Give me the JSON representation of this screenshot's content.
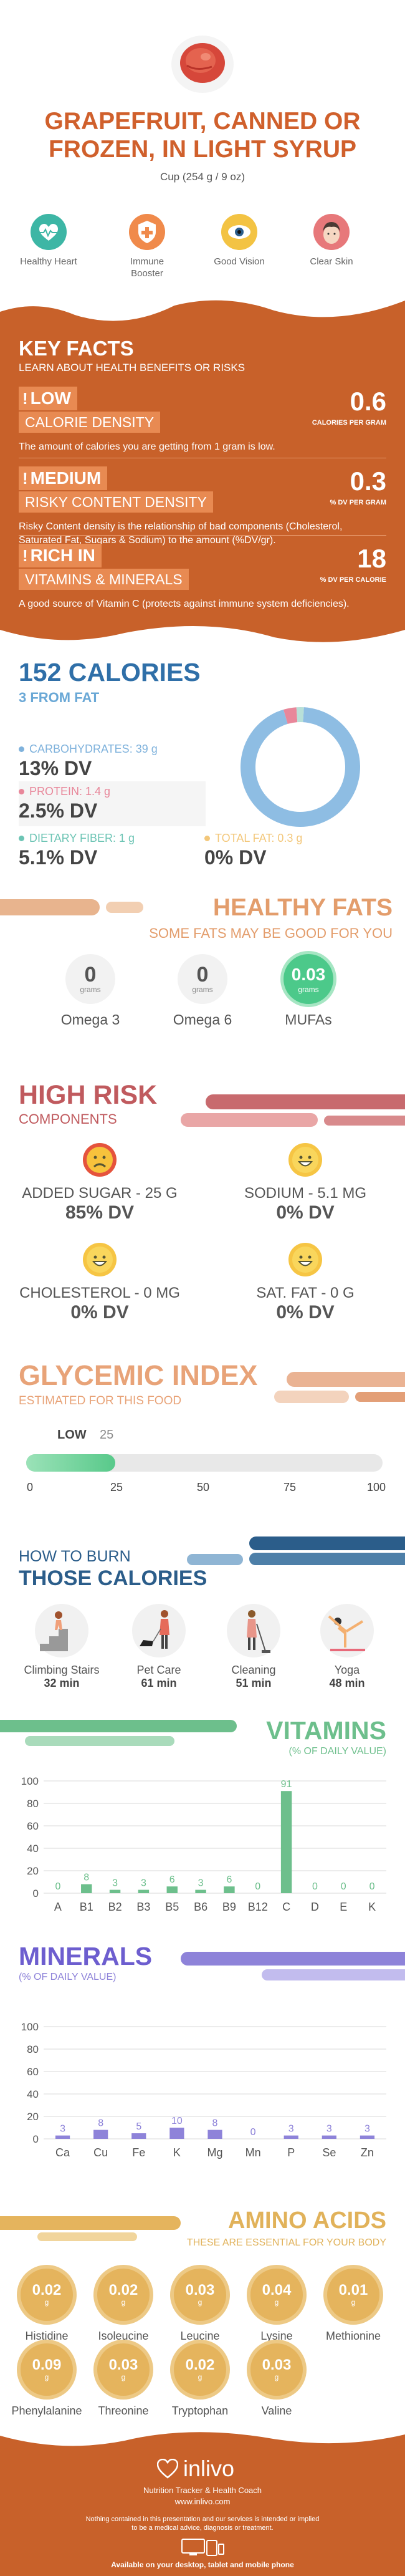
{
  "header": {
    "title": "GRAPEFRUIT, CANNED OR FROZEN, IN LIGHT SYRUP",
    "serving": "Cup (254 g / 9 oz)",
    "benefits": [
      {
        "label": "Healthy Heart",
        "icon": "heart-icon",
        "color": "#3db6a5"
      },
      {
        "label": "Immune Booster",
        "icon": "shield-icon",
        "color": "#f08a4b"
      },
      {
        "label": "Good Vision",
        "icon": "eye-icon",
        "color": "#f3c343"
      },
      {
        "label": "Clear Skin",
        "icon": "face-icon",
        "color": "#e7787a"
      }
    ]
  },
  "key_facts": {
    "heading": "KEY FACTS",
    "subheading": "LEARN ABOUT HEALTH BENEFITS OR RISKS",
    "facts": [
      {
        "level": "LOW",
        "label": "CALORIE DENSITY",
        "value": "0.6",
        "unit": "CALORIES PER GRAM",
        "description": "The amount of calories you are getting from 1 gram is low."
      },
      {
        "level": "MEDIUM",
        "label": "RISKY CONTENT DENSITY",
        "value": "0.3",
        "unit": "% DV PER GRAM",
        "description": "Risky Content density is the relationship of bad components (Cholesterol, Saturated Fat, Sugars & Sodium) to the amount (%DV/gr)."
      },
      {
        "level": "RICH  IN",
        "label": "VITAMINS & MINERALS",
        "value": "18",
        "unit": "% DV PER CALORIE",
        "description": "A good source of Vitamin C (protects against immune system deficiencies)."
      }
    ],
    "colors": {
      "bg": "#c8612a",
      "tag": "#e88a52"
    }
  },
  "calories": {
    "heading": "152 CALORIES",
    "subheading": "3 FROM FAT",
    "nutrients": [
      {
        "label": "CARBOHYDRATES: 39 g",
        "value": "13% DV",
        "color": "#7fb2dc",
        "bg": "#ffffff"
      },
      {
        "label": "PROTEIN: 1.4 g",
        "value": "2.5% DV",
        "color": "#e8879a",
        "bg": "#f5f5f5"
      },
      {
        "label": "DIETARY FIBER: 1 g",
        "value": "5.1% DV",
        "color": "#6cc4b4",
        "bg": "#ffffff"
      },
      {
        "label": "TOTAL FAT: 0.3 g",
        "value": "0% DV",
        "color": "#f3c77a",
        "bg": "#ffffff"
      }
    ],
    "pie": [
      {
        "name": "carbohydrates",
        "fraction": 0.945,
        "color": "#8ebde3"
      },
      {
        "name": "protein",
        "fraction": 0.035,
        "color": "#e8879a"
      },
      {
        "name": "fat",
        "fraction": 0.02,
        "color": "#b8e0d8"
      }
    ]
  },
  "healthy_fats": {
    "heading": "HEALTHY FATS",
    "subheading": "SOME FATS MAY BE GOOD FOR YOU",
    "items": [
      {
        "name": "Omega 3",
        "value": "0",
        "unit": "grams",
        "highlight": false
      },
      {
        "name": "Omega 6",
        "value": "0",
        "unit": "grams",
        "highlight": false
      },
      {
        "name": "MUFAs",
        "value": "0.03",
        "unit": "grams",
        "highlight": true
      }
    ]
  },
  "high_risk": {
    "heading": "HIGH RISK",
    "subheading": "COMPONENTS",
    "items": [
      {
        "label": "ADDED SUGAR - 25 g",
        "value": "85% DV",
        "face": "sad-face-icon"
      },
      {
        "label": "SODIUM - 5.1 mg",
        "value": "0% DV",
        "face": "happy-face-icon"
      },
      {
        "label": "CHOLESTEROL - 0 mg",
        "value": "0% DV",
        "face": "happy-face-icon"
      },
      {
        "label": "SAT. FAT - 0 g",
        "value": "0% DV",
        "face": "happy-face-icon"
      }
    ]
  },
  "glycemic": {
    "heading": "GLYCEMIC INDEX",
    "subheading": "ESTIMATED FOR THIS FOOD",
    "level": "LOW",
    "value": "25",
    "fraction": 0.25,
    "ticks": [
      "0",
      "25",
      "50",
      "75",
      "100"
    ]
  },
  "burn": {
    "heading1": "HOW TO BURN",
    "heading2": "THOSE CALORIES",
    "activities": [
      {
        "name": "Climbing Stairs",
        "minutes": "32 min",
        "icon": "stairs-icon"
      },
      {
        "name": "Pet Care",
        "minutes": "61 min",
        "icon": "dog-walk-icon"
      },
      {
        "name": "Cleaning",
        "minutes": "51 min",
        "icon": "cleaning-icon"
      },
      {
        "name": "Yoga",
        "minutes": "48 min",
        "icon": "yoga-icon"
      }
    ]
  },
  "chart_data": [
    {
      "type": "bar",
      "title": "VITAMINS",
      "subtitle": "(% OF DAILY VALUE)",
      "categories": [
        "A",
        "B1",
        "B2",
        "B3",
        "B5",
        "B6",
        "B9",
        "B12",
        "C",
        "D",
        "E",
        "K"
      ],
      "values": [
        0,
        8,
        3,
        3,
        6,
        3,
        6,
        0,
        91,
        0,
        0,
        0
      ],
      "labels": [
        "0",
        "8",
        "3",
        "3",
        "6",
        "3",
        "6",
        "0",
        "91",
        "0",
        "0",
        "0"
      ],
      "ylim": [
        0,
        100
      ],
      "yticks": [
        "0",
        "20",
        "40",
        "60",
        "80",
        "100"
      ],
      "color": "#6dbf8c",
      "grid": true
    },
    {
      "type": "bar",
      "title": "MINERALS",
      "subtitle": "(% OF DAILY VALUE)",
      "categories": [
        "Ca",
        "Cu",
        "Fe",
        "K",
        "Mg",
        "Mn",
        "P",
        "Se",
        "Zn"
      ],
      "values": [
        3,
        8,
        5,
        10,
        8,
        0,
        3,
        3,
        3
      ],
      "labels": [
        "3",
        "8",
        "5",
        "10",
        "8",
        "0",
        "3",
        "3",
        "3"
      ],
      "ylim": [
        0,
        100
      ],
      "yticks": [
        "0",
        "20",
        "40",
        "60",
        "80",
        "100"
      ],
      "color": "#8e83d9",
      "grid": true
    }
  ],
  "amino": {
    "heading": "AMINO ACIDS",
    "subheading": "THESE ARE ESSENTIAL FOR YOUR BODY",
    "unit": "g",
    "items": [
      {
        "name": "Histidine",
        "value": "0.02"
      },
      {
        "name": "Isoleucine",
        "value": "0.02"
      },
      {
        "name": "Leucine",
        "value": "0.03"
      },
      {
        "name": "Lysine",
        "value": "0.04"
      },
      {
        "name": "Methionine",
        "value": "0.01"
      },
      {
        "name": "Phenylalanine",
        "value": "0.09"
      },
      {
        "name": "Threonine",
        "value": "0.03"
      },
      {
        "name": "Tryptophan",
        "value": "0.02"
      },
      {
        "name": "Valine",
        "value": "0.03"
      }
    ]
  },
  "footer": {
    "brand": "inlivo",
    "tagline": "Nutrition Tracker & Health Coach",
    "url": "www.inlivo.com",
    "disclaimer1": "Nothing contained in this presentation and our services is intended or implied",
    "disclaimer2": "to be a medical advice, diagnosis or treatment.",
    "available": "Available on your desktop, tablet and mobile phone"
  }
}
